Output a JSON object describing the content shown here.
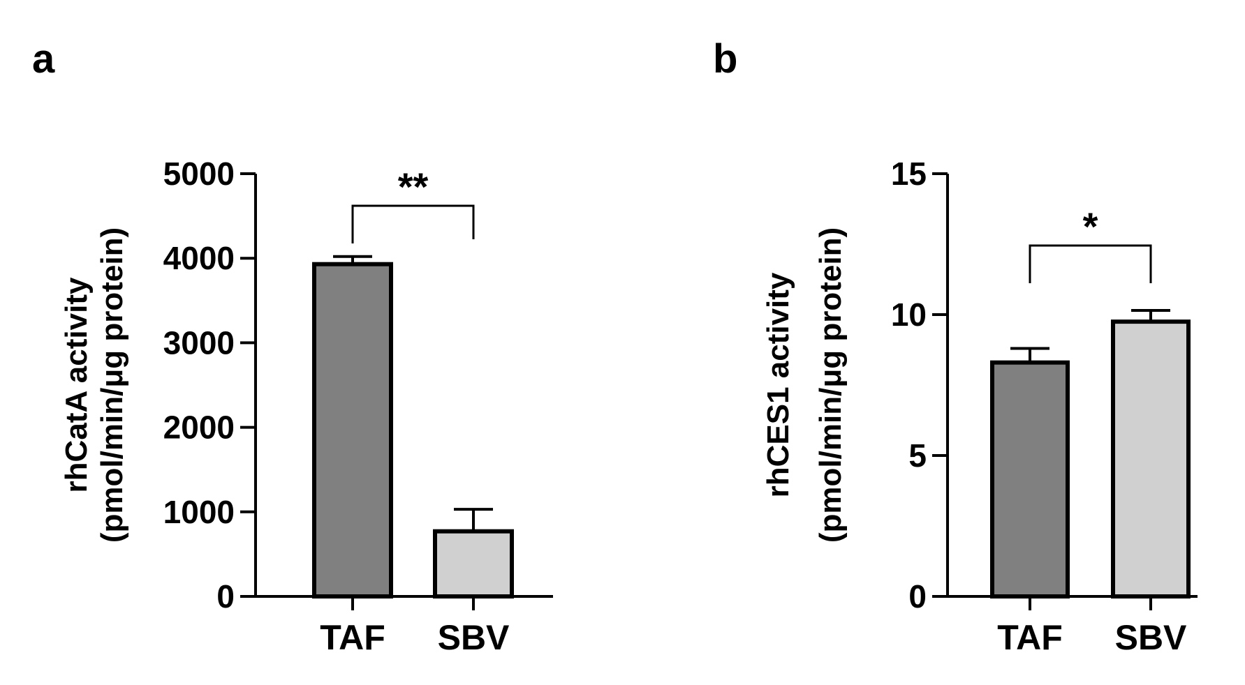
{
  "chart_data": [
    {
      "type": "bar",
      "panel": "a",
      "ylabel": [
        "rhCatA activity",
        "(pmol/min/μg protein)"
      ],
      "categories": [
        "TAF",
        "SBV"
      ],
      "values": [
        3930,
        770
      ],
      "errors": [
        90,
        260
      ],
      "colors": [
        "#808080",
        "#d0d0d0"
      ],
      "ylim": [
        0,
        5000
      ],
      "yticks": [
        0,
        1000,
        2000,
        3000,
        4000,
        5000
      ],
      "significance": "**"
    },
    {
      "type": "bar",
      "panel": "b",
      "ylabel": [
        "rhCES1 activity",
        "(pmol/min/μg protein)"
      ],
      "categories": [
        "TAF",
        "SBV"
      ],
      "values": [
        8.3,
        9.75
      ],
      "errors": [
        0.5,
        0.4
      ],
      "colors": [
        "#808080",
        "#d0d0d0"
      ],
      "ylim": [
        0,
        15
      ],
      "yticks": [
        0,
        5,
        10,
        15
      ],
      "significance": "*"
    }
  ]
}
